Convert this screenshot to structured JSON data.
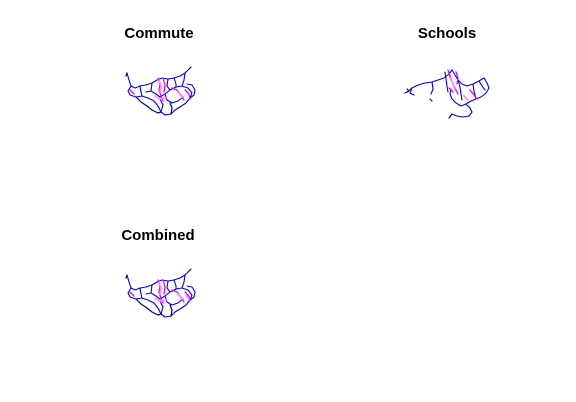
{
  "panels": [
    {
      "title": "Commute"
    },
    {
      "title": "Schools"
    },
    {
      "title": "Combined"
    }
  ],
  "colors": {
    "network": "#0000ee",
    "network_dark": "#00008b",
    "highlight": "#ee00ee",
    "highlight_light": "#ff88ff"
  }
}
